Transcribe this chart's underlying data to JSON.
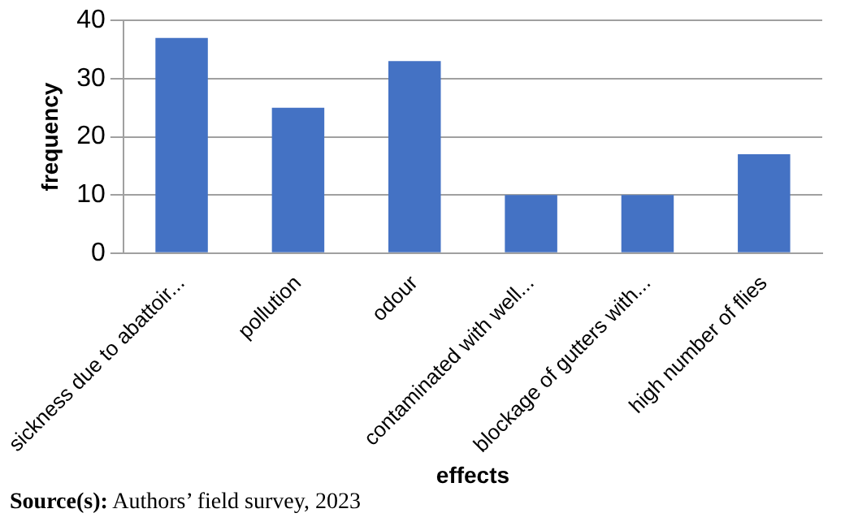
{
  "chart_data": {
    "type": "bar",
    "xlabel": "effects",
    "ylabel": "frequency",
    "categories": [
      "sickness due to abattoir...",
      "pollution",
      "odour",
      "contaminated with well...",
      "blockage of gutters with...",
      "high number of flies"
    ],
    "values": [
      37,
      25,
      33,
      10,
      10,
      17
    ],
    "color": "#4472c4",
    "ylim": [
      0,
      40
    ],
    "yticks": [
      0,
      10,
      20,
      30,
      40
    ],
    "grid": "y",
    "annotations": [
      "Source(s): Authors’ field survey, 2023"
    ]
  }
}
